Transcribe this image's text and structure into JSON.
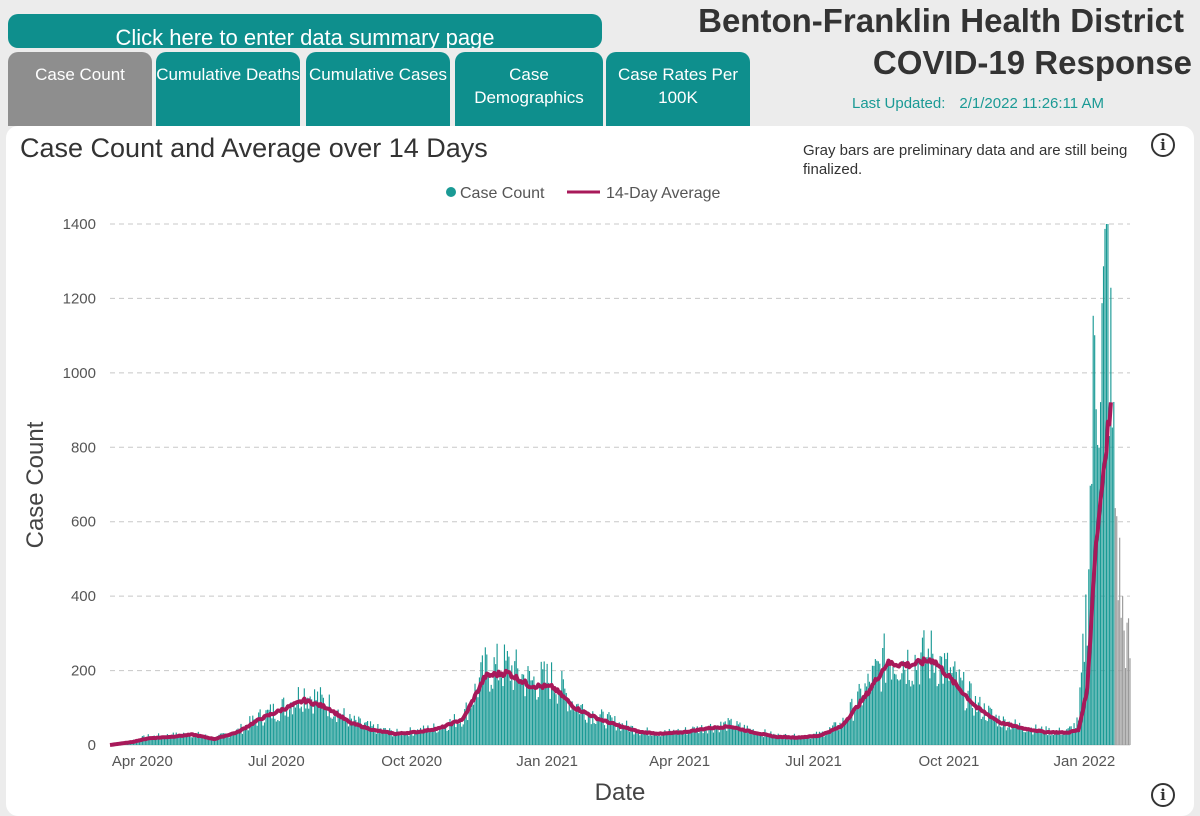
{
  "summary_button": "Click here to enter data summary page",
  "tabs": [
    {
      "label": "Case Count"
    },
    {
      "label": "Cumulative Deaths"
    },
    {
      "label": "Cumulative Cases"
    },
    {
      "label": "Case Demographics"
    },
    {
      "label": "Case Rates Per 100K"
    }
  ],
  "header": {
    "title_line1": "Benton-Franklin Health District",
    "title_line2": "COVID-19 Response",
    "updated_label": "Last Updated:",
    "updated_value": "2/1/2022 11:26:11 AM"
  },
  "note": "Gray bars are preliminary data and are still being finalized.",
  "info_icon": "info-circle-icon",
  "colors": {
    "accent": "#0e8f8d",
    "bars": "#1a9a95",
    "preliminary": "#9a9a9a",
    "line": "#a8195a",
    "active_tab": "#8e8e8e"
  },
  "chart_data": {
    "type": "bar",
    "title": "Case Count and Average over 14 Days",
    "xlabel": "Date",
    "ylabel": "Case Count",
    "ylim": [
      0,
      1400
    ],
    "yticks": [
      "0",
      "200",
      "400",
      "600",
      "800",
      "1000",
      "1200",
      "1400"
    ],
    "xticks": [
      {
        "date": "2020-04-01",
        "label": "Apr 2020"
      },
      {
        "date": "2020-07-01",
        "label": "Jul 2020"
      },
      {
        "date": "2020-10-01",
        "label": "Oct 2020"
      },
      {
        "date": "2021-01-01",
        "label": "Jan 2021"
      },
      {
        "date": "2021-04-01",
        "label": "Apr 2021"
      },
      {
        "date": "2021-07-01",
        "label": "Jul 2021"
      },
      {
        "date": "2021-10-01",
        "label": "Oct 2021"
      },
      {
        "date": "2022-01-01",
        "label": "Jan 2022"
      }
    ],
    "x_range": [
      "2020-03-10",
      "2022-02-01"
    ],
    "legend": [
      {
        "name": "Case Count",
        "marker": "dot"
      },
      {
        "name": "14-Day Average",
        "marker": "line"
      }
    ],
    "legend_position": "top-center",
    "grid": "horizontal dashed",
    "series": [
      {
        "name": "Case Count",
        "kind": "bar",
        "points": [
          {
            "x": "2020-03-10",
            "y": 0
          },
          {
            "x": "2020-03-25",
            "y": 12
          },
          {
            "x": "2020-04-05",
            "y": 22
          },
          {
            "x": "2020-04-20",
            "y": 25
          },
          {
            "x": "2020-05-05",
            "y": 30
          },
          {
            "x": "2020-05-20",
            "y": 18
          },
          {
            "x": "2020-06-05",
            "y": 38
          },
          {
            "x": "2020-06-20",
            "y": 75
          },
          {
            "x": "2020-07-05",
            "y": 100
          },
          {
            "x": "2020-07-20",
            "y": 140
          },
          {
            "x": "2020-08-05",
            "y": 110
          },
          {
            "x": "2020-08-20",
            "y": 65
          },
          {
            "x": "2020-09-05",
            "y": 45
          },
          {
            "x": "2020-09-20",
            "y": 32
          },
          {
            "x": "2020-10-05",
            "y": 38
          },
          {
            "x": "2020-10-20",
            "y": 48
          },
          {
            "x": "2020-11-05",
            "y": 75
          },
          {
            "x": "2020-11-20",
            "y": 200
          },
          {
            "x": "2020-12-05",
            "y": 210
          },
          {
            "x": "2020-12-20",
            "y": 170
          },
          {
            "x": "2021-01-05",
            "y": 175
          },
          {
            "x": "2021-01-20",
            "y": 110
          },
          {
            "x": "2021-02-05",
            "y": 75
          },
          {
            "x": "2021-02-20",
            "y": 55
          },
          {
            "x": "2021-03-05",
            "y": 38
          },
          {
            "x": "2021-03-20",
            "y": 32
          },
          {
            "x": "2021-04-05",
            "y": 38
          },
          {
            "x": "2021-04-20",
            "y": 48
          },
          {
            "x": "2021-05-05",
            "y": 55
          },
          {
            "x": "2021-05-20",
            "y": 40
          },
          {
            "x": "2021-06-05",
            "y": 25
          },
          {
            "x": "2021-06-20",
            "y": 22
          },
          {
            "x": "2021-07-05",
            "y": 28
          },
          {
            "x": "2021-07-20",
            "y": 55
          },
          {
            "x": "2021-08-05",
            "y": 145
          },
          {
            "x": "2021-08-20",
            "y": 235
          },
          {
            "x": "2021-09-05",
            "y": 225
          },
          {
            "x": "2021-09-20",
            "y": 240
          },
          {
            "x": "2021-10-05",
            "y": 175
          },
          {
            "x": "2021-10-20",
            "y": 105
          },
          {
            "x": "2021-11-05",
            "y": 65
          },
          {
            "x": "2021-11-20",
            "y": 48
          },
          {
            "x": "2021-12-05",
            "y": 38
          },
          {
            "x": "2021-12-20",
            "y": 35
          },
          {
            "x": "2021-12-28",
            "y": 60
          },
          {
            "x": "2022-01-03",
            "y": 400
          },
          {
            "x": "2022-01-08",
            "y": 1050
          },
          {
            "x": "2022-01-13",
            "y": 1080
          },
          {
            "x": "2022-01-17",
            "y": 1250
          },
          {
            "x": "2022-01-20",
            "y": 850
          },
          {
            "x": "2022-01-24",
            "y": 500
          },
          {
            "x": "2022-01-28",
            "y": 300
          },
          {
            "x": "2022-02-01",
            "y": 250
          }
        ],
        "preliminary_from": "2022-01-22"
      },
      {
        "name": "14-Day Average",
        "kind": "line",
        "points": [
          {
            "x": "2020-03-10",
            "y": 0
          },
          {
            "x": "2020-03-25",
            "y": 8
          },
          {
            "x": "2020-04-05",
            "y": 18
          },
          {
            "x": "2020-04-20",
            "y": 22
          },
          {
            "x": "2020-05-05",
            "y": 28
          },
          {
            "x": "2020-05-20",
            "y": 16
          },
          {
            "x": "2020-06-05",
            "y": 35
          },
          {
            "x": "2020-06-20",
            "y": 70
          },
          {
            "x": "2020-07-05",
            "y": 95
          },
          {
            "x": "2020-07-20",
            "y": 120
          },
          {
            "x": "2020-08-05",
            "y": 100
          },
          {
            "x": "2020-08-20",
            "y": 60
          },
          {
            "x": "2020-09-05",
            "y": 40
          },
          {
            "x": "2020-09-20",
            "y": 30
          },
          {
            "x": "2020-10-05",
            "y": 35
          },
          {
            "x": "2020-10-20",
            "y": 45
          },
          {
            "x": "2020-11-05",
            "y": 70
          },
          {
            "x": "2020-11-20",
            "y": 185
          },
          {
            "x": "2020-12-05",
            "y": 195
          },
          {
            "x": "2020-12-20",
            "y": 160
          },
          {
            "x": "2021-01-05",
            "y": 155
          },
          {
            "x": "2021-01-20",
            "y": 100
          },
          {
            "x": "2021-02-05",
            "y": 70
          },
          {
            "x": "2021-02-20",
            "y": 50
          },
          {
            "x": "2021-03-05",
            "y": 35
          },
          {
            "x": "2021-03-20",
            "y": 30
          },
          {
            "x": "2021-04-05",
            "y": 35
          },
          {
            "x": "2021-04-20",
            "y": 45
          },
          {
            "x": "2021-05-05",
            "y": 50
          },
          {
            "x": "2021-05-20",
            "y": 35
          },
          {
            "x": "2021-06-05",
            "y": 22
          },
          {
            "x": "2021-06-20",
            "y": 20
          },
          {
            "x": "2021-07-05",
            "y": 25
          },
          {
            "x": "2021-07-20",
            "y": 50
          },
          {
            "x": "2021-08-05",
            "y": 130
          },
          {
            "x": "2021-08-20",
            "y": 220
          },
          {
            "x": "2021-09-05",
            "y": 215
          },
          {
            "x": "2021-09-20",
            "y": 230
          },
          {
            "x": "2021-10-05",
            "y": 165
          },
          {
            "x": "2021-10-20",
            "y": 100
          },
          {
            "x": "2021-11-05",
            "y": 60
          },
          {
            "x": "2021-11-20",
            "y": 45
          },
          {
            "x": "2021-12-05",
            "y": 35
          },
          {
            "x": "2021-12-20",
            "y": 33
          },
          {
            "x": "2021-12-28",
            "y": 40
          },
          {
            "x": "2022-01-03",
            "y": 150
          },
          {
            "x": "2022-01-08",
            "y": 500
          },
          {
            "x": "2022-01-13",
            "y": 700
          },
          {
            "x": "2022-01-17",
            "y": 860
          },
          {
            "x": "2022-01-19",
            "y": 900
          }
        ]
      }
    ]
  }
}
